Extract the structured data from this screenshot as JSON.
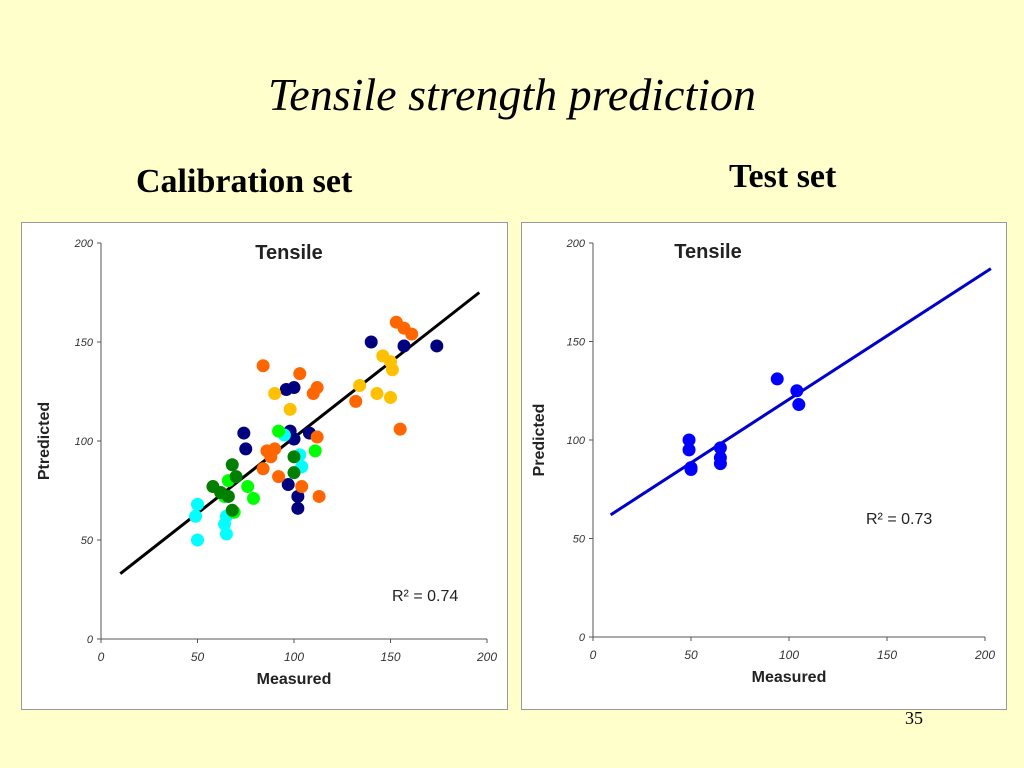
{
  "slide": {
    "title": "Tensile strength prediction",
    "left_label": "Calibration set",
    "right_label": "Test set",
    "page_number": "35"
  },
  "chart_data": [
    {
      "type": "scatter",
      "title": "Tensile",
      "xlabel": "Measured",
      "ylabel": "Ptredicted",
      "xlim": [
        0,
        200
      ],
      "ylim": [
        0,
        200
      ],
      "xticks": [
        0,
        50,
        100,
        150,
        200
      ],
      "yticks": [
        0,
        50,
        100,
        150,
        200
      ],
      "grid": false,
      "annotation": "R² = 0.74",
      "trendline": {
        "color": "#000000",
        "x": [
          10,
          196
        ],
        "y": [
          33,
          175
        ]
      },
      "series": [
        {
          "color": "#00007f",
          "points": [
            [
              74,
              104
            ],
            [
              75,
              96
            ],
            [
              96,
              126
            ],
            [
              100,
              127
            ],
            [
              98,
              105
            ],
            [
              97,
              78
            ],
            [
              102,
              72
            ],
            [
              102,
              66
            ],
            [
              108,
              104
            ],
            [
              100,
              101
            ],
            [
              140,
              150
            ],
            [
              157,
              148
            ],
            [
              174,
              148
            ]
          ]
        },
        {
          "color": "#ff6600",
          "points": [
            [
              84,
              138
            ],
            [
              90,
              96
            ],
            [
              92,
              82
            ],
            [
              88,
              92
            ],
            [
              84,
              86
            ],
            [
              86,
              95
            ],
            [
              103,
              134
            ],
            [
              104,
              77
            ],
            [
              110,
              124
            ],
            [
              112,
              127
            ],
            [
              112,
              102
            ],
            [
              113,
              72
            ],
            [
              132,
              120
            ],
            [
              153,
              160
            ],
            [
              157,
              157
            ],
            [
              161,
              154
            ],
            [
              155,
              106
            ]
          ]
        },
        {
          "color": "#ffc000",
          "points": [
            [
              90,
              124
            ],
            [
              98,
              116
            ],
            [
              134,
              128
            ],
            [
              143,
              124
            ],
            [
              146,
              143
            ],
            [
              150,
              140
            ],
            [
              151,
              136
            ],
            [
              150,
              122
            ]
          ]
        },
        {
          "color": "#00ffff",
          "points": [
            [
              50,
              68
            ],
            [
              49,
              62
            ],
            [
              50,
              50
            ],
            [
              65,
              62
            ],
            [
              64,
              58
            ],
            [
              65,
              53
            ],
            [
              95,
              103
            ],
            [
              103,
              93
            ],
            [
              104,
              87
            ]
          ]
        },
        {
          "color": "#00ff00",
          "points": [
            [
              64,
              72
            ],
            [
              66,
              80
            ],
            [
              69,
              64
            ],
            [
              76,
              77
            ],
            [
              79,
              71
            ],
            [
              92,
              105
            ],
            [
              111,
              95
            ]
          ]
        },
        {
          "color": "#007f00",
          "points": [
            [
              58,
              77
            ],
            [
              62,
              74
            ],
            [
              66,
              72
            ],
            [
              68,
              88
            ],
            [
              70,
              82
            ],
            [
              68,
              65
            ],
            [
              100,
              92
            ],
            [
              100,
              84
            ]
          ]
        }
      ]
    },
    {
      "type": "scatter",
      "title": "Tensile",
      "xlabel": "Measured",
      "ylabel": "Predicted",
      "xlim": [
        0,
        200
      ],
      "ylim": [
        0,
        200
      ],
      "xticks": [
        0,
        50,
        100,
        150,
        200
      ],
      "yticks": [
        0,
        50,
        100,
        150,
        200
      ],
      "grid": false,
      "annotation": "R² = 0.73",
      "trendline": {
        "color": "#0000cc",
        "x": [
          9,
          203
        ],
        "y": [
          62,
          187
        ]
      },
      "series": [
        {
          "color": "#0000ff",
          "points": [
            [
              49,
              100
            ],
            [
              49,
              95
            ],
            [
              50,
              86
            ],
            [
              50,
              85
            ],
            [
              65,
              96
            ],
            [
              65,
              91
            ],
            [
              65,
              88
            ],
            [
              94,
              131
            ],
            [
              104,
              125
            ],
            [
              105,
              118
            ]
          ]
        }
      ]
    }
  ]
}
